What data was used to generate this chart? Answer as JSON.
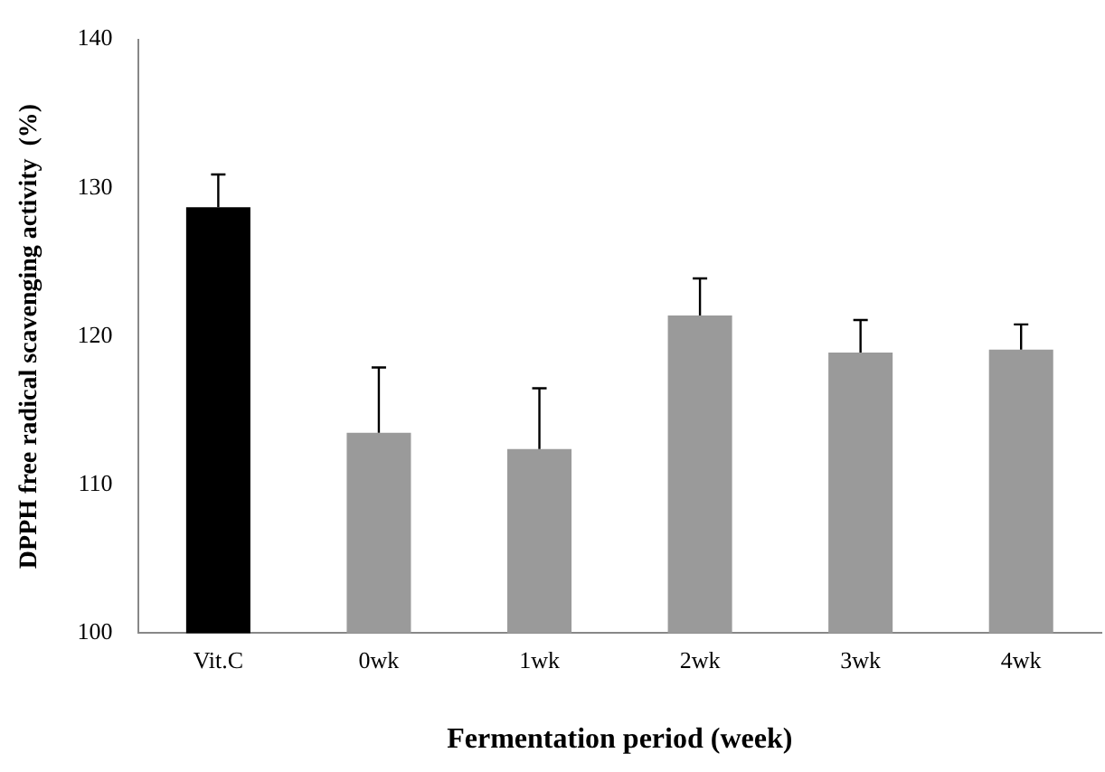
{
  "chart_data": {
    "type": "bar",
    "xlabel": "Fermentation period (week)",
    "ylabel": "DPPH free radical scavenging activity  (%)",
    "categories": [
      "Vit.C",
      "0wk",
      "1wk",
      "2wk",
      "3wk",
      "4wk"
    ],
    "values": [
      128.7,
      113.5,
      112.4,
      121.4,
      118.9,
      119.1
    ],
    "colors": [
      "#000000",
      "#9a9a9a",
      "#9a9a9a",
      "#9a9a9a",
      "#9a9a9a",
      "#9a9a9a"
    ],
    "errors": [
      [
        128.7,
        130.9
      ],
      [
        113.5,
        117.9
      ],
      [
        112.4,
        116.5
      ],
      [
        121.4,
        123.9
      ],
      [
        118.9,
        121.1
      ],
      [
        119.1,
        120.8
      ]
    ],
    "ylim": [
      100,
      140
    ],
    "yticks": [
      100,
      110,
      120,
      130,
      140
    ],
    "grid": false,
    "legend": false
  }
}
